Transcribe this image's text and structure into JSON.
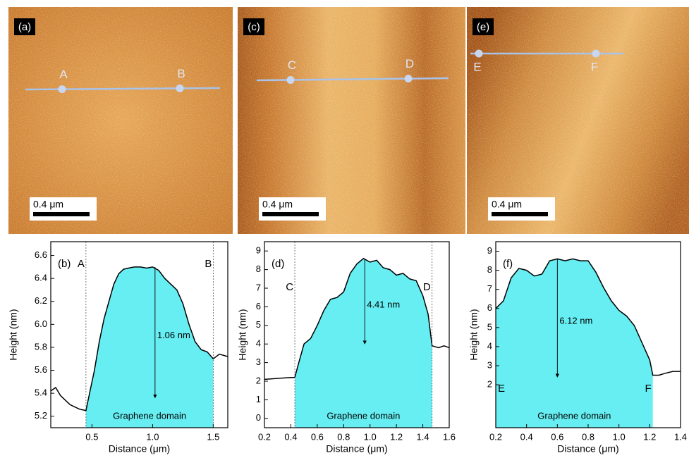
{
  "images": [
    {
      "label": "(a)",
      "scale": "0.4 μm",
      "points": [
        "A",
        "B"
      ]
    },
    {
      "label": "(c)",
      "scale": "0.4 μm",
      "points": [
        "C",
        "D"
      ]
    },
    {
      "label": "(e)",
      "scale": "0.4 μm",
      "points": [
        "E",
        "F"
      ]
    }
  ],
  "chart_data": [
    {
      "type": "line",
      "label": "(b)",
      "x_label": "Distance (μm)",
      "y_label": "Height (nm)",
      "color": "#000000",
      "fill_color": "#66eef2",
      "x": [
        0.16,
        0.2,
        0.24,
        0.28,
        0.32,
        0.36,
        0.4,
        0.45,
        0.48,
        0.52,
        0.56,
        0.6,
        0.64,
        0.68,
        0.72,
        0.76,
        0.8,
        0.85,
        0.9,
        0.95,
        1.0,
        1.05,
        1.1,
        1.15,
        1.2,
        1.25,
        1.3,
        1.35,
        1.4,
        1.45,
        1.5,
        1.55,
        1.62
      ],
      "values": [
        5.42,
        5.45,
        5.38,
        5.34,
        5.3,
        5.28,
        5.26,
        5.25,
        5.4,
        5.6,
        5.85,
        6.05,
        6.2,
        6.35,
        6.44,
        6.48,
        6.49,
        6.5,
        6.5,
        6.49,
        6.5,
        6.47,
        6.4,
        6.35,
        6.3,
        6.18,
        6.0,
        5.85,
        5.78,
        5.76,
        5.7,
        5.74,
        5.72
      ],
      "domain": [
        0.45,
        1.5
      ],
      "domain_label": "Graphene domain",
      "markers": [
        {
          "label": "A",
          "x": 0.45
        },
        {
          "label": "B",
          "x": 1.5
        }
      ],
      "marker_lines": true,
      "arrow": {
        "x": 1.02,
        "from": 6.5,
        "to": 5.36,
        "label": "1.06 nm"
      },
      "xlim": [
        0.16,
        1.62
      ],
      "xticks": [
        0.5,
        {
          "value": 1,
          "label": "1.0"
        },
        1.5
      ],
      "ylim": [
        5.1,
        6.72
      ],
      "yticks": [
        5.2,
        5.4,
        5.6,
        5.8,
        {
          "value": 6,
          "label": "6.0"
        },
        6.2,
        6.4,
        6.6
      ]
    },
    {
      "type": "line",
      "label": "(d)",
      "x_label": "Distance (μm)",
      "y_label": "Height (nm)",
      "color": "#000000",
      "fill_color": "#66eef2",
      "x": [
        0.2,
        0.3,
        0.4,
        0.43,
        0.46,
        0.5,
        0.55,
        0.6,
        0.65,
        0.7,
        0.75,
        0.8,
        0.85,
        0.9,
        0.95,
        1.0,
        1.05,
        1.1,
        1.15,
        1.2,
        1.25,
        1.3,
        1.35,
        1.4,
        1.44,
        1.47,
        1.52,
        1.56,
        1.6
      ],
      "values": [
        2.1,
        2.15,
        2.2,
        2.2,
        3.0,
        4.0,
        4.3,
        5.0,
        5.8,
        6.4,
        6.5,
        6.8,
        7.8,
        8.3,
        8.6,
        8.4,
        8.5,
        8.1,
        8.0,
        7.7,
        7.8,
        7.5,
        7.4,
        6.6,
        5.6,
        3.9,
        3.8,
        3.9,
        3.8
      ],
      "domain": [
        0.43,
        1.47
      ],
      "domain_label": "Graphene domain",
      "markers": [
        {
          "label": "C",
          "x": 0.43
        },
        {
          "label": "D",
          "x": 1.47
        }
      ],
      "marker_lines": true,
      "arrow": {
        "x": 0.96,
        "from": 8.55,
        "to": 4.0,
        "label": "4.41 nm"
      },
      "xlim": [
        0.2,
        1.6
      ],
      "xticks": [
        0.2,
        0.4,
        0.6,
        0.8,
        {
          "value": 1,
          "label": "1.0"
        },
        1.2,
        1.4,
        1.6
      ],
      "ylim": [
        -0.5,
        9.5
      ],
      "yticks": [
        0,
        1,
        2,
        3,
        4,
        5,
        6,
        7,
        8,
        9
      ]
    },
    {
      "type": "line",
      "label": "(f)",
      "x_label": "Distance (μm)",
      "y_label": "Height (nm)",
      "color": "#000000",
      "fill_color": "#66eef2",
      "x": [
        0.2,
        0.25,
        0.3,
        0.35,
        0.4,
        0.45,
        0.5,
        0.55,
        0.6,
        0.65,
        0.7,
        0.75,
        0.8,
        0.85,
        0.9,
        0.95,
        1.0,
        1.05,
        1.1,
        1.15,
        1.2,
        1.22,
        1.26,
        1.3,
        1.35,
        1.4
      ],
      "values": [
        6.0,
        6.4,
        7.6,
        8.1,
        8.0,
        7.7,
        7.8,
        8.5,
        8.6,
        8.5,
        8.6,
        8.5,
        8.5,
        7.9,
        7.1,
        6.4,
        5.9,
        5.6,
        5.1,
        4.2,
        3.3,
        2.5,
        2.5,
        2.6,
        2.7,
        2.7
      ],
      "domain": [
        0.2,
        1.22
      ],
      "domain_label": "Graphene domain",
      "markers": [
        {
          "label": "E",
          "x": 0.2
        },
        {
          "label": "F",
          "x": 1.22
        }
      ],
      "marker_lines": false,
      "arrow": {
        "x": 0.6,
        "from": 8.6,
        "to": 2.4,
        "label": "6.12 nm"
      },
      "xlim": [
        0.2,
        1.4
      ],
      "xticks": [
        0.2,
        0.4,
        0.6,
        0.8,
        {
          "value": 1,
          "label": "1.0"
        },
        1.2,
        1.4
      ],
      "ylim": [
        -0.25,
        9.5
      ],
      "yticks": [
        2,
        3,
        4,
        5,
        6,
        7,
        8,
        9
      ]
    }
  ]
}
